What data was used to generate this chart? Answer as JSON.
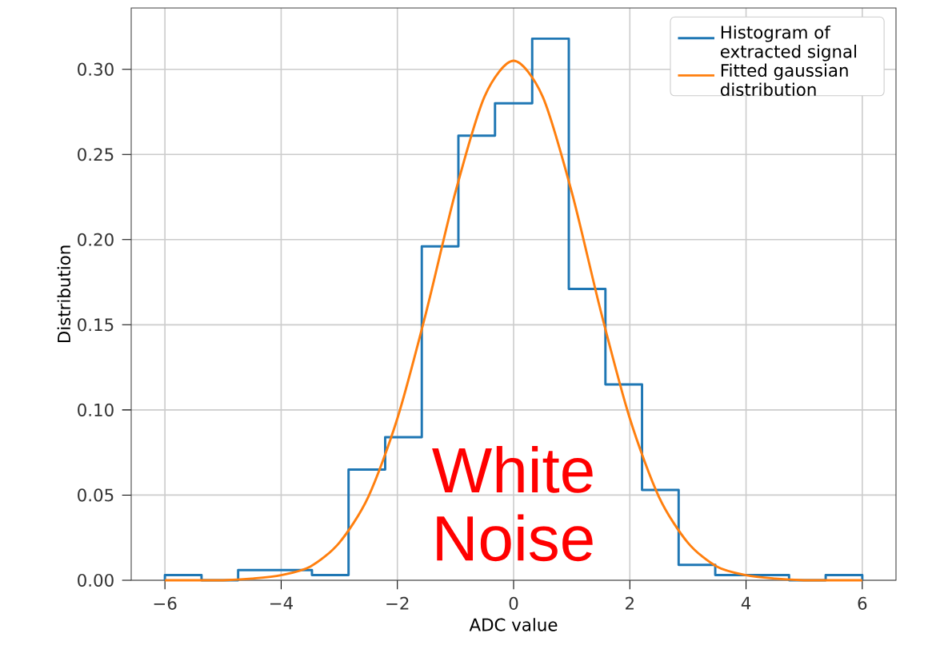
{
  "chart_data": {
    "type": "histogram",
    "xlabel": "ADC value",
    "ylabel": "Distribution",
    "xlim": [
      -6.58,
      6.58
    ],
    "ylim": [
      0,
      0.336
    ],
    "xticks": [
      {
        "value": -6,
        "label": "−6"
      },
      {
        "value": -4,
        "label": "−4"
      },
      {
        "value": -2,
        "label": "−2"
      },
      0,
      2,
      4,
      6
    ],
    "yticks": [
      {
        "value": 0,
        "label": "0.00"
      },
      {
        "value": 0.05,
        "label": "0.05"
      },
      {
        "value": 0.1,
        "label": "0.10"
      },
      {
        "value": 0.15,
        "label": "0.15"
      },
      {
        "value": 0.2,
        "label": "0.20"
      },
      {
        "value": 0.25,
        "label": "0.25"
      },
      {
        "value": 0.3,
        "label": "0.30"
      }
    ],
    "grid": true,
    "legend": "top right",
    "series": [
      {
        "name": "Histogram of extracted signal",
        "color": "#1f77b4",
        "bins": [
          -6,
          -5.37,
          -4.74,
          -4.11,
          -3.47,
          -2.84,
          -2.21,
          -1.58,
          -0.95,
          -0.32,
          0.32,
          0.95,
          1.58,
          2.21,
          2.84,
          3.47,
          4.11,
          4.74,
          5.37,
          6
        ],
        "values": [
          0.003,
          0,
          0.006,
          0.006,
          0.003,
          0.065,
          0.084,
          0.196,
          0.261,
          0.28,
          0.318,
          0.171,
          0.115,
          0.053,
          0.009,
          0.003,
          0.003,
          0,
          0.003
        ]
      },
      {
        "type": "line",
        "name": "Fitted gaussian distribution",
        "color": "#ff7f0e",
        "x": [
          -6,
          -5.5,
          -5,
          -4.5,
          -4,
          -3.5,
          -3,
          -2.5,
          -2,
          -1.5,
          -1,
          -0.5,
          0,
          0.5,
          1,
          1.5,
          2,
          2.5,
          3,
          3.5,
          4,
          4.5,
          5,
          5.5,
          6
        ],
        "values": [
          0,
          0,
          0,
          0.001,
          0.003,
          0.008,
          0.022,
          0.049,
          0.095,
          0.158,
          0.228,
          0.284,
          0.305,
          0.284,
          0.228,
          0.158,
          0.095,
          0.049,
          0.022,
          0.008,
          0.003,
          0.001,
          0,
          0,
          0
        ]
      }
    ],
    "annotations": [
      "White Noise"
    ]
  }
}
